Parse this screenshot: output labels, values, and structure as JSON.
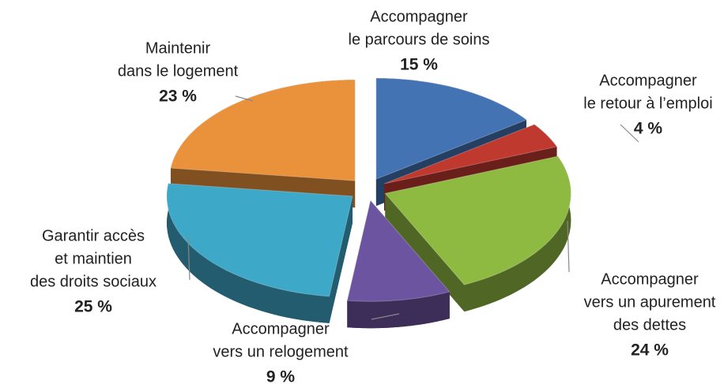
{
  "chart_data": {
    "type": "pie",
    "categories": [
      [
        "Accompagner",
        "le parcours de soins"
      ],
      [
        "Accompagner",
        "le retour à l’emploi"
      ],
      [
        "Accompagner",
        "vers un apurement",
        "des dettes"
      ],
      [
        "Accompagner",
        "vers un relogement"
      ],
      [
        "Garantir accès",
        "et maintien",
        "des droits sociaux"
      ],
      [
        "Maintenir",
        "dans le logement"
      ]
    ],
    "values": [
      15,
      4,
      24,
      9,
      25,
      23
    ],
    "value_labels": [
      "15 %",
      "4 %",
      "24 %",
      "9 %",
      "25 %",
      "23 %"
    ],
    "colors": [
      "#4473b4",
      "#c0392f",
      "#8fba42",
      "#6d54a0",
      "#3ea8c8",
      "#ea913b"
    ]
  }
}
